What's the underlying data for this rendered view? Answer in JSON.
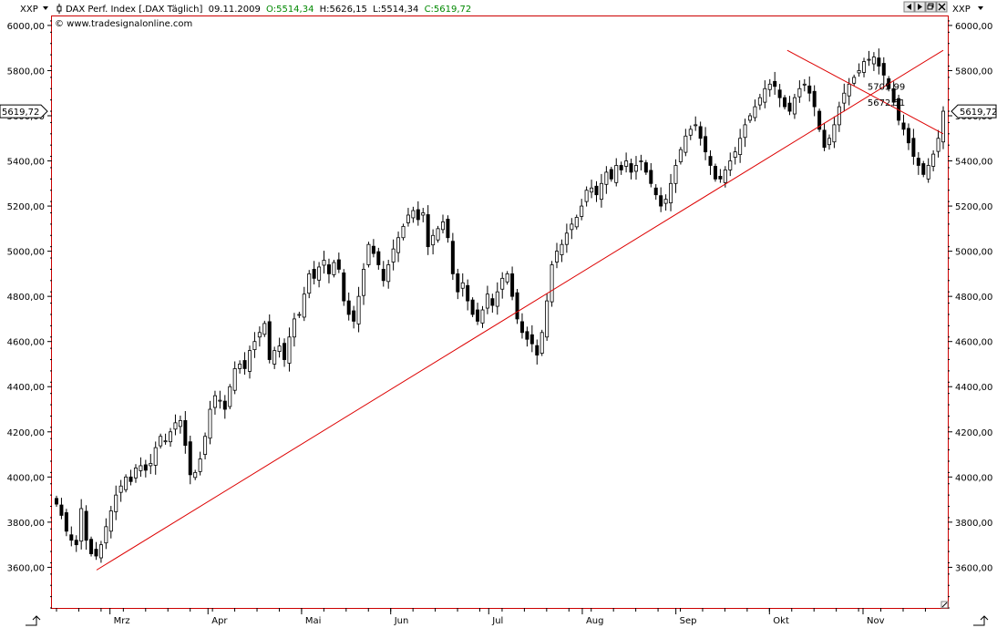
{
  "header": {
    "symbol_left": "XXP",
    "symbol_right": "XXP",
    "dropdown_icon": "chevron-down-icon",
    "instrument": "DAX Perf. Index [.DAX  Täglich]",
    "date": "09.11.2009",
    "open_label": "O:5514,34",
    "high_label": "H:5626,15",
    "low_label": "L:5514,34",
    "close_label": "C:5619,72",
    "copyright": "© www.tradesignalonline.com",
    "nav_icons": [
      "arrow-left-icon",
      "arrow-right-icon",
      "restore-icon",
      "close-icon"
    ]
  },
  "colors": {
    "frame": "#cc0000",
    "trendline": "#dd0000",
    "candle_up": "#ffffff",
    "candle_down": "#000000",
    "ohlc_value": "#008800",
    "price_marker": "#ffffff"
  },
  "chart_data": {
    "type": "candlestick",
    "ylim": [
      3420,
      6040
    ],
    "y_ticks": [
      3600,
      3800,
      4000,
      4200,
      4400,
      4600,
      4800,
      5000,
      5200,
      5400,
      5600,
      5800,
      6000
    ],
    "y_tick_labels": [
      "3600,00",
      "3800,00",
      "4000,00",
      "4200,00",
      "4400,00",
      "4600,00",
      "4800,00",
      "5000,00",
      "5200,00",
      "5400,00",
      "5600,00",
      "5800,00",
      "6000,00"
    ],
    "months": [
      {
        "label": "Mrz",
        "day": 12
      },
      {
        "label": "Apr",
        "day": 34
      },
      {
        "label": "Mai",
        "day": 55
      },
      {
        "label": "Jun",
        "day": 75
      },
      {
        "label": "Jul",
        "day": 97
      },
      {
        "label": "Aug",
        "day": 118
      },
      {
        "label": "Sep",
        "day": 139
      },
      {
        "label": "Okt",
        "day": 160
      },
      {
        "label": "Nov",
        "day": 181
      }
    ],
    "day_count": 200,
    "close_series": [
      3880,
      3830,
      3760,
      3720,
      3700,
      3860,
      3720,
      3660,
      3650,
      3700,
      3780,
      3850,
      3920,
      3960,
      4000,
      3980,
      4040,
      4050,
      4030,
      4060,
      4130,
      4180,
      4160,
      4200,
      4240,
      4250,
      4140,
      4010,
      4020,
      4080,
      4180,
      4300,
      4360,
      4340,
      4300,
      4400,
      4480,
      4500,
      4480,
      4560,
      4600,
      4640,
      4680,
      4520,
      4560,
      4580,
      4520,
      4620,
      4700,
      4720,
      4810,
      4900,
      4880,
      4930,
      4960,
      4900,
      4950,
      4920,
      4780,
      4720,
      4690,
      4800,
      4920,
      5030,
      4990,
      4940,
      4870,
      4940,
      5010,
      5060,
      5110,
      5160,
      5180,
      5140,
      5170,
      5020,
      5070,
      5100,
      5130,
      5060,
      4900,
      4820,
      4860,
      4780,
      4720,
      4690,
      4740,
      4810,
      4760,
      4820,
      4880,
      4900,
      4800,
      4700,
      4640,
      4610,
      4590,
      4540,
      4640,
      4780,
      4940,
      5000,
      5030,
      5080,
      5120,
      5150,
      5200,
      5270,
      5280,
      5250,
      5300,
      5350,
      5320,
      5380,
      5360,
      5400,
      5350,
      5380,
      5400,
      5350,
      5300,
      5250,
      5200,
      5230,
      5300,
      5380,
      5450,
      5510,
      5540,
      5560,
      5500,
      5440,
      5380,
      5320,
      5320,
      5360,
      5400,
      5440,
      5500,
      5560,
      5600,
      5640,
      5680,
      5720,
      5740,
      5730,
      5680,
      5640,
      5620,
      5680,
      5720,
      5740,
      5700,
      5640,
      5540,
      5460,
      5500,
      5560,
      5640,
      5700,
      5740,
      5770,
      5800,
      5840,
      5850,
      5860,
      5820,
      5780,
      5720,
      5660,
      5580,
      5540,
      5480,
      5420,
      5380,
      5340,
      5380,
      5430,
      5500,
      5620
    ],
    "trendlines": [
      {
        "from": {
          "day": 9,
          "value": 3588
        },
        "to": {
          "day": 199,
          "value": 5890
        }
      },
      {
        "from": {
          "day": 164,
          "value": 5890
        },
        "to": {
          "day": 199,
          "value": 5520
        }
      }
    ],
    "annotations": [
      {
        "text": "5705,99",
        "day": 182,
        "value": 5705.99
      },
      {
        "text": "5672,51",
        "day": 182,
        "value": 5672.51
      }
    ],
    "last_price": {
      "text": "5619,72",
      "value": 5619.72
    }
  }
}
